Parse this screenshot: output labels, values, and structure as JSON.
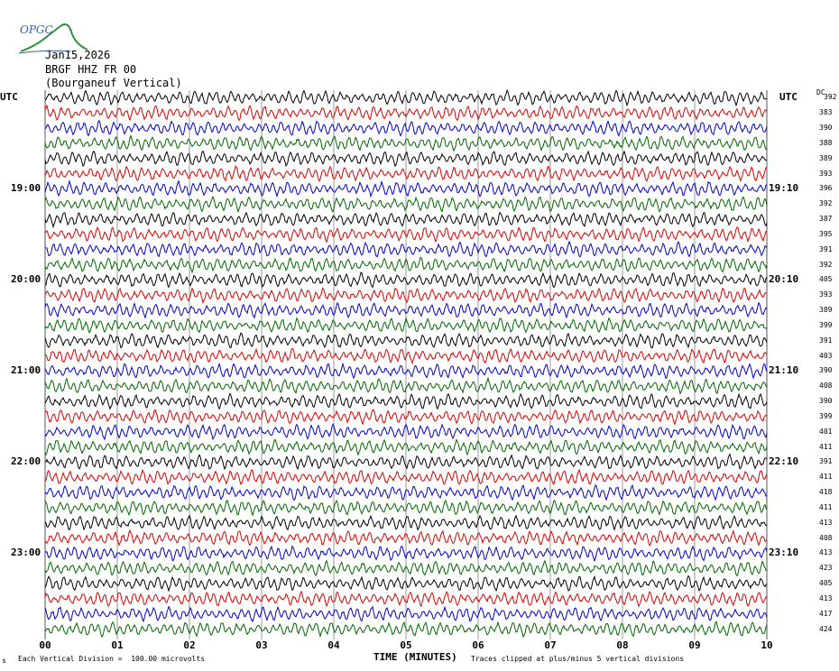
{
  "logo": {
    "text": "OPGC"
  },
  "header": {
    "date": "Jan15,2026",
    "channel": "BRGF HHZ FR 00",
    "station": "(Bourganeuf Vertical)"
  },
  "left_axis": {
    "utc_label": "UTC",
    "times": [
      {
        "label": "19:00",
        "row": 6
      },
      {
        "label": "20:00",
        "row": 12
      },
      {
        "label": "21:00",
        "row": 18
      },
      {
        "label": "22:00",
        "row": 24
      },
      {
        "label": "23:00",
        "row": 30
      }
    ]
  },
  "right_axis": {
    "utc_label": "UTC",
    "dc_label": "DC",
    "times": [
      {
        "label": "19:10",
        "row": 6
      },
      {
        "label": "20:10",
        "row": 12
      },
      {
        "label": "21:10",
        "row": 18
      },
      {
        "label": "22:10",
        "row": 24
      },
      {
        "label": "23:10",
        "row": 30
      }
    ],
    "dc_values": [
      "392",
      "383",
      "390",
      "388",
      "389",
      "393",
      "396",
      "392",
      "387",
      "395",
      "391",
      "392",
      "405",
      "393",
      "389",
      "399",
      "391",
      "403",
      "390",
      "408",
      "390",
      "399",
      "401",
      "411",
      "391",
      "411",
      "418",
      "411",
      "413",
      "408",
      "413",
      "423",
      "405",
      "413",
      "417",
      "424"
    ]
  },
  "footer": {
    "xlabel": "TIME (MINUTES)",
    "left_note": "Each Vertical Division =  100.00 microvolts",
    "right_note": "Traces clipped at plus/minus 5 vertical divisions",
    "corner_mark": "s"
  },
  "colors": {
    "trace_cycle": [
      "#000000",
      "#dd0000",
      "#0000cc",
      "#006600"
    ],
    "grid": "#555555",
    "logo": "#2f8f3a",
    "logo_text": "#3a5fa8"
  },
  "chart_data": {
    "type": "line",
    "title": "",
    "xlabel": "TIME (MINUTES)",
    "ylabel": "",
    "xlim": [
      0,
      10
    ],
    "x_ticks": [
      "00",
      "01",
      "02",
      "03",
      "04",
      "05",
      "06",
      "07",
      "08",
      "09",
      "10"
    ],
    "row_count": 36,
    "minutes_per_row": 10,
    "grid": true,
    "description_units": "microvolts",
    "vertical_division_uv": 100.0,
    "clip_divisions": 5
  }
}
